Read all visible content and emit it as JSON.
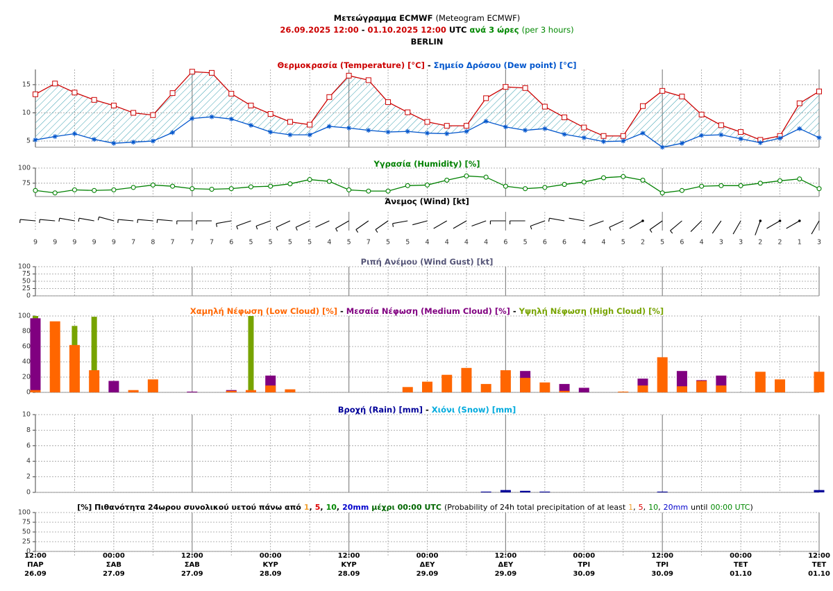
{
  "header": {
    "title": "Μετεώγραμμα ECMWF",
    "title_en": "(Meteogram ECMWF)",
    "start": "26.09.2025 12:00",
    "separator": "-",
    "end": "01.10.2025 12:00",
    "tz": "UTC",
    "step": "ανά 3 ώρες",
    "step_en": "(per 3 hours)",
    "location": "BERLIN"
  },
  "x_labels": {
    "time": [
      "12:00",
      "00:00",
      "12:00",
      "00:00",
      "12:00",
      "00:00",
      "12:00",
      "00:00",
      "12:00",
      "00:00",
      "12:00"
    ],
    "day": [
      "ΠΑΡ",
      "ΣΑΒ",
      "ΣΑΒ",
      "ΚΥΡ",
      "ΚΥΡ",
      "ΔΕΥ",
      "ΔΕΥ",
      "ΤΡΙ",
      "ΤΡΙ",
      "ΤΕΤ",
      "ΤΕΤ"
    ],
    "date": [
      "26.09",
      "27.09",
      "27.09",
      "28.09",
      "28.09",
      "29.09",
      "29.09",
      "30.09",
      "30.09",
      "01.10",
      "01.10"
    ]
  },
  "chart_data": [
    {
      "type": "line",
      "separator": "-",
      "fill_color": "#3a9fb0",
      "ylim": [
        3.9,
        17.7
      ],
      "yticks": [
        5,
        10,
        15
      ],
      "grid": true,
      "series": [
        {
          "name": "Θερμοκρασία (Temperature) [°C]",
          "color": "#cc0000",
          "values": [
            13.3,
            15.2,
            13.6,
            12.3,
            11.3,
            10.0,
            9.6,
            13.5,
            17.3,
            17.1,
            13.4,
            11.3,
            9.8,
            8.4,
            7.9,
            12.8,
            16.6,
            15.8,
            11.9,
            10.1,
            8.4,
            7.7,
            7.7,
            12.6,
            14.6,
            14.4,
            11.1,
            9.2,
            7.4,
            5.9,
            5.9,
            11.2,
            13.9,
            12.9,
            9.7,
            7.8,
            6.6,
            5.2,
            5.9,
            11.7,
            13.8
          ]
        },
        {
          "name": "Σημείο Δρόσου (Dew point) [°C]",
          "color": "#0055cc",
          "values": [
            5.2,
            5.8,
            6.3,
            5.3,
            4.6,
            4.8,
            5.0,
            6.5,
            9.0,
            9.3,
            8.9,
            7.8,
            6.6,
            6.1,
            6.1,
            7.6,
            7.3,
            6.9,
            6.6,
            6.7,
            6.4,
            6.3,
            6.7,
            8.5,
            7.5,
            6.9,
            7.2,
            6.2,
            5.6,
            4.9,
            5.0,
            6.4,
            3.9,
            4.6,
            6.0,
            6.1,
            5.4,
            4.7,
            5.5,
            7.2,
            5.6
          ]
        }
      ]
    },
    {
      "type": "line",
      "ylim": [
        53,
        100
      ],
      "yticks": [
        75,
        100
      ],
      "grid": true,
      "series": [
        {
          "name": "Υγρασία (Humidity) [%]",
          "color": "#008000",
          "values": [
            63,
            59,
            64,
            63,
            64,
            68,
            72,
            70,
            66,
            65,
            66,
            69,
            70,
            74,
            81,
            78,
            64,
            62,
            62,
            71,
            72,
            80,
            87,
            85,
            70,
            66,
            68,
            73,
            77,
            84,
            86,
            80,
            59,
            63,
            70,
            71,
            71,
            75,
            79,
            82,
            66
          ]
        }
      ]
    },
    {
      "type": "barb",
      "title": "Άνεμος (Wind) [kt]",
      "color": "#000000",
      "values": [
        9,
        9,
        9,
        9,
        9,
        7,
        8,
        7,
        7,
        7,
        6,
        5,
        5,
        5,
        5,
        4,
        5,
        7,
        5,
        5,
        4,
        4,
        4,
        4,
        6,
        5,
        6,
        6,
        4,
        4,
        5,
        2,
        5,
        6,
        4,
        3,
        3,
        2,
        2,
        1,
        3
      ],
      "direction": [
        275,
        275,
        280,
        280,
        285,
        275,
        275,
        275,
        270,
        270,
        260,
        250,
        250,
        245,
        245,
        245,
        240,
        235,
        235,
        260,
        255,
        240,
        240,
        250,
        270,
        270,
        250,
        280,
        280,
        250,
        245,
        240,
        235,
        230,
        225,
        215,
        210,
        200,
        240,
        240,
        210
      ]
    },
    {
      "type": "bar",
      "title": "Ριπή Ανέμου (Wind Gust) [kt]",
      "title_color": "#555577",
      "ylim": [
        0,
        100
      ],
      "yticks": [
        0,
        25,
        50,
        75,
        100
      ],
      "grid": true
    },
    {
      "type": "bar",
      "separator": "-",
      "ylim": [
        0,
        100
      ],
      "yticks": [
        0,
        20,
        40,
        60,
        80,
        100
      ],
      "grid": true,
      "series": [
        {
          "name": "Χαμηλή Νέφωση (Low Cloud) [%]",
          "color": "#ff6600",
          "values": [
            3,
            93,
            62,
            29,
            0,
            3,
            17,
            0,
            0,
            0,
            2,
            3,
            9,
            4,
            0,
            0,
            0,
            0,
            0,
            7,
            14,
            23,
            32,
            11,
            29,
            19,
            13,
            2,
            0,
            0,
            1,
            9,
            46,
            8,
            15,
            9,
            0,
            27,
            17,
            0,
            27
          ]
        },
        {
          "name": "Μεσαία Νέφωση (Medium Cloud) [%]",
          "color": "#800080",
          "values": [
            97,
            0,
            0,
            0,
            15,
            0,
            0,
            0,
            1,
            0,
            3,
            0,
            22,
            0,
            0,
            0,
            0,
            0,
            0,
            0,
            0,
            0,
            0,
            0,
            0,
            28,
            0,
            11,
            6,
            0,
            0,
            18,
            0,
            28,
            16,
            22,
            0,
            0,
            0,
            0,
            0
          ]
        },
        {
          "name": "Υψηλή Νέφωση (High Cloud) [%]",
          "color": "#77a300",
          "values": [
            100,
            0,
            87,
            99,
            0,
            0,
            0,
            0,
            0,
            0,
            0,
            100,
            0,
            0,
            0,
            0,
            0,
            0,
            0,
            0,
            0,
            0,
            0,
            0,
            0,
            0,
            0,
            0,
            0,
            0,
            0,
            0,
            0,
            0,
            0,
            0,
            0,
            0,
            0,
            0,
            0
          ]
        }
      ]
    },
    {
      "type": "bar",
      "separator": "-",
      "ylim": [
        0,
        10
      ],
      "yticks": [
        0,
        2,
        4,
        6,
        8,
        10
      ],
      "grid": true,
      "series": [
        {
          "name": "Βροχή (Rain) [mm]",
          "color": "#000099",
          "values": [
            0,
            0,
            0,
            0,
            0,
            0,
            0,
            0,
            0,
            0,
            0,
            0,
            0,
            0,
            0,
            0,
            0,
            0,
            0,
            0,
            0,
            0,
            0,
            0.1,
            0.3,
            0.2,
            0.1,
            0,
            0,
            0,
            0,
            0,
            0.1,
            0,
            0,
            0,
            0,
            0,
            0,
            0,
            0.3
          ]
        },
        {
          "name": "Χιόνι (Snow) [mm]",
          "color": "#00aadd",
          "values": [
            0,
            0,
            0,
            0,
            0,
            0,
            0,
            0,
            0,
            0,
            0,
            0,
            0,
            0,
            0,
            0,
            0,
            0,
            0,
            0,
            0,
            0,
            0,
            0,
            0,
            0,
            0,
            0,
            0,
            0,
            0,
            0,
            0,
            0,
            0,
            0,
            0,
            0,
            0,
            0,
            0
          ]
        }
      ]
    },
    {
      "type": "bar",
      "title": "[%] Πιθανότητα 24ωρου συνολικού υετού πάνω από",
      "thresholds": [
        "1",
        "5",
        "10",
        "20mm"
      ],
      "threshold_colors": [
        "#f0a030",
        "#dd0000",
        "#008800",
        "#0000cc"
      ],
      "comma": ",",
      "until": "μέχρι 00:00 UTC",
      "title_en": "(Probability of 24h total precipitation of at least",
      "until_en": "until",
      "time_en": "00:00 UTC",
      "close": ")",
      "ylim": [
        0,
        100
      ],
      "yticks": [
        0,
        25,
        50,
        75,
        100
      ],
      "grid": true
    }
  ]
}
